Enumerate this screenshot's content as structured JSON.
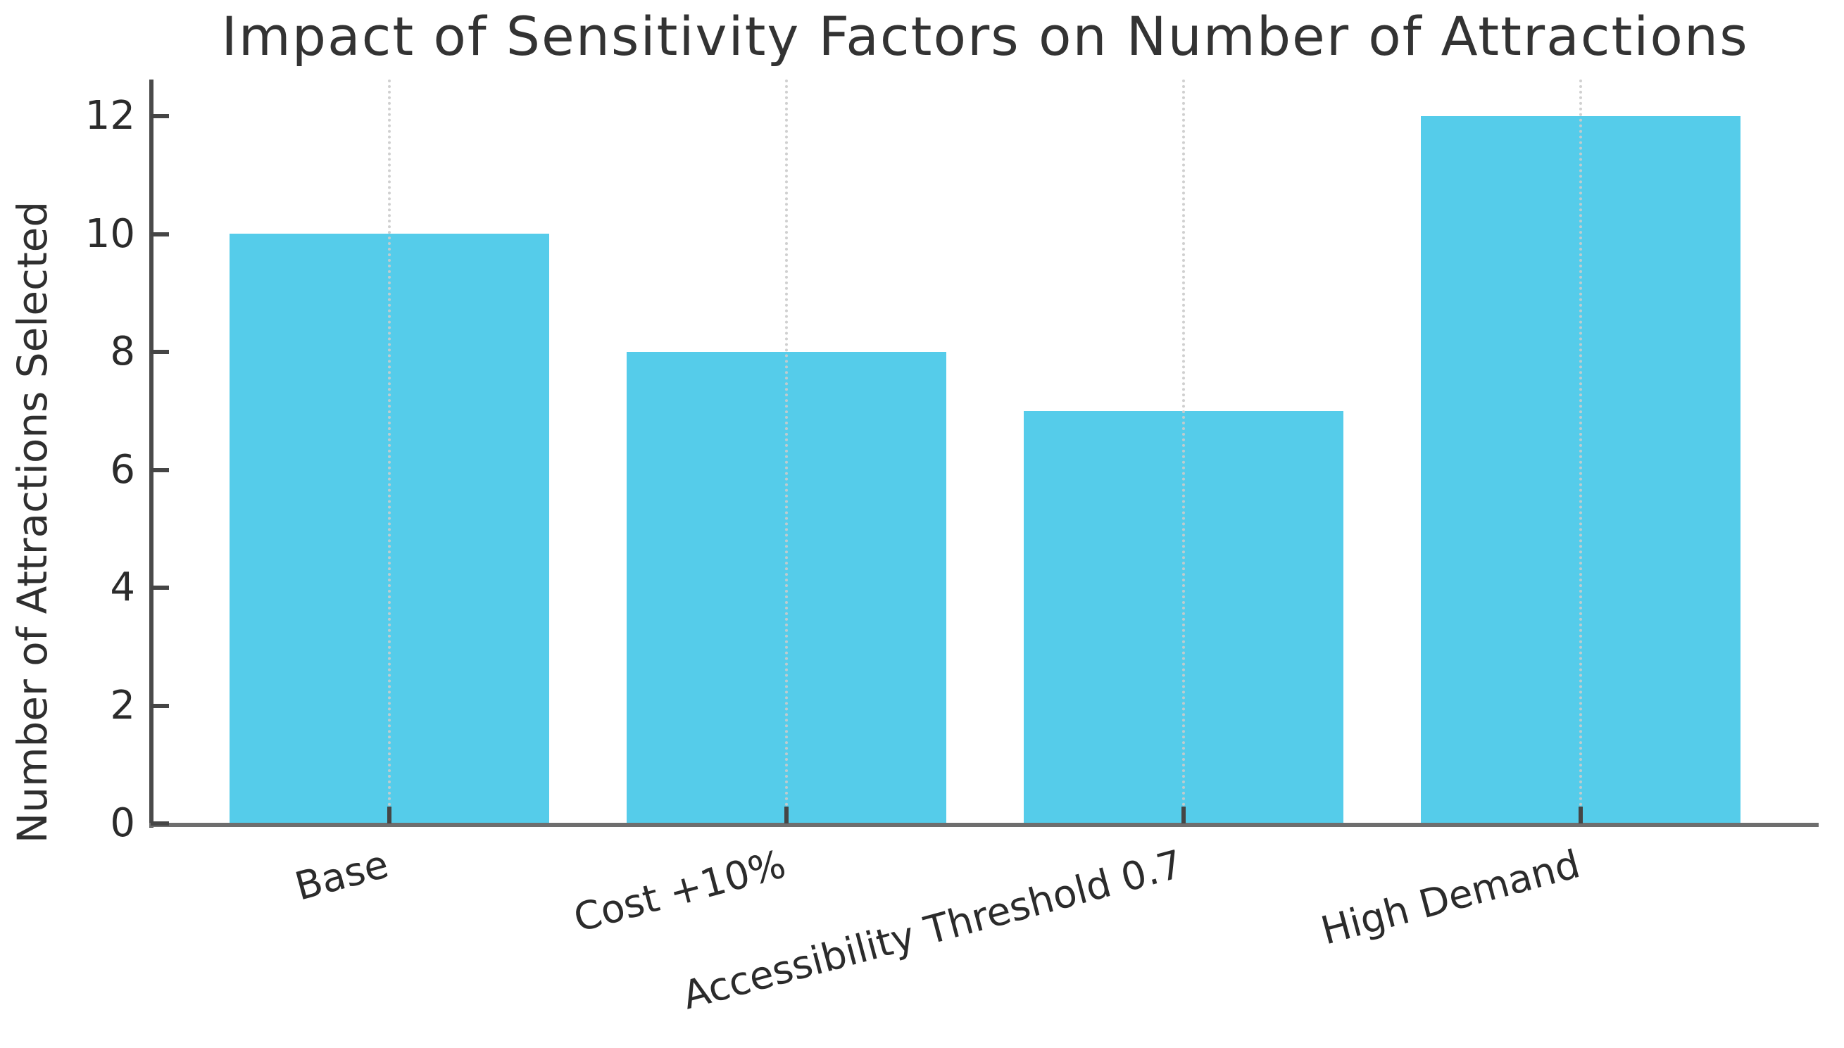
{
  "chart_data": {
    "type": "bar",
    "title": "Impact of Sensitivity Factors on Number of Attractions",
    "ylabel": "Number of Attractions Selected",
    "xlabel": "",
    "categories": [
      "Base",
      "Cost +10%",
      "Accessibility Threshold 0.7",
      "High Demand"
    ],
    "values": [
      10,
      8,
      7,
      12
    ],
    "yticks": [
      0,
      2,
      4,
      6,
      8,
      10,
      12
    ],
    "ylim": [
      0,
      12.6
    ],
    "xtick_rotation_deg": 15,
    "grid": "vertical-dotted",
    "legend": "none",
    "colors": {
      "bar_fill": "#55CCEA",
      "gridline": "#cbcbcb",
      "spine": "#4a4a4a",
      "text": "#2b2b2b",
      "title_text": "#333333"
    }
  }
}
